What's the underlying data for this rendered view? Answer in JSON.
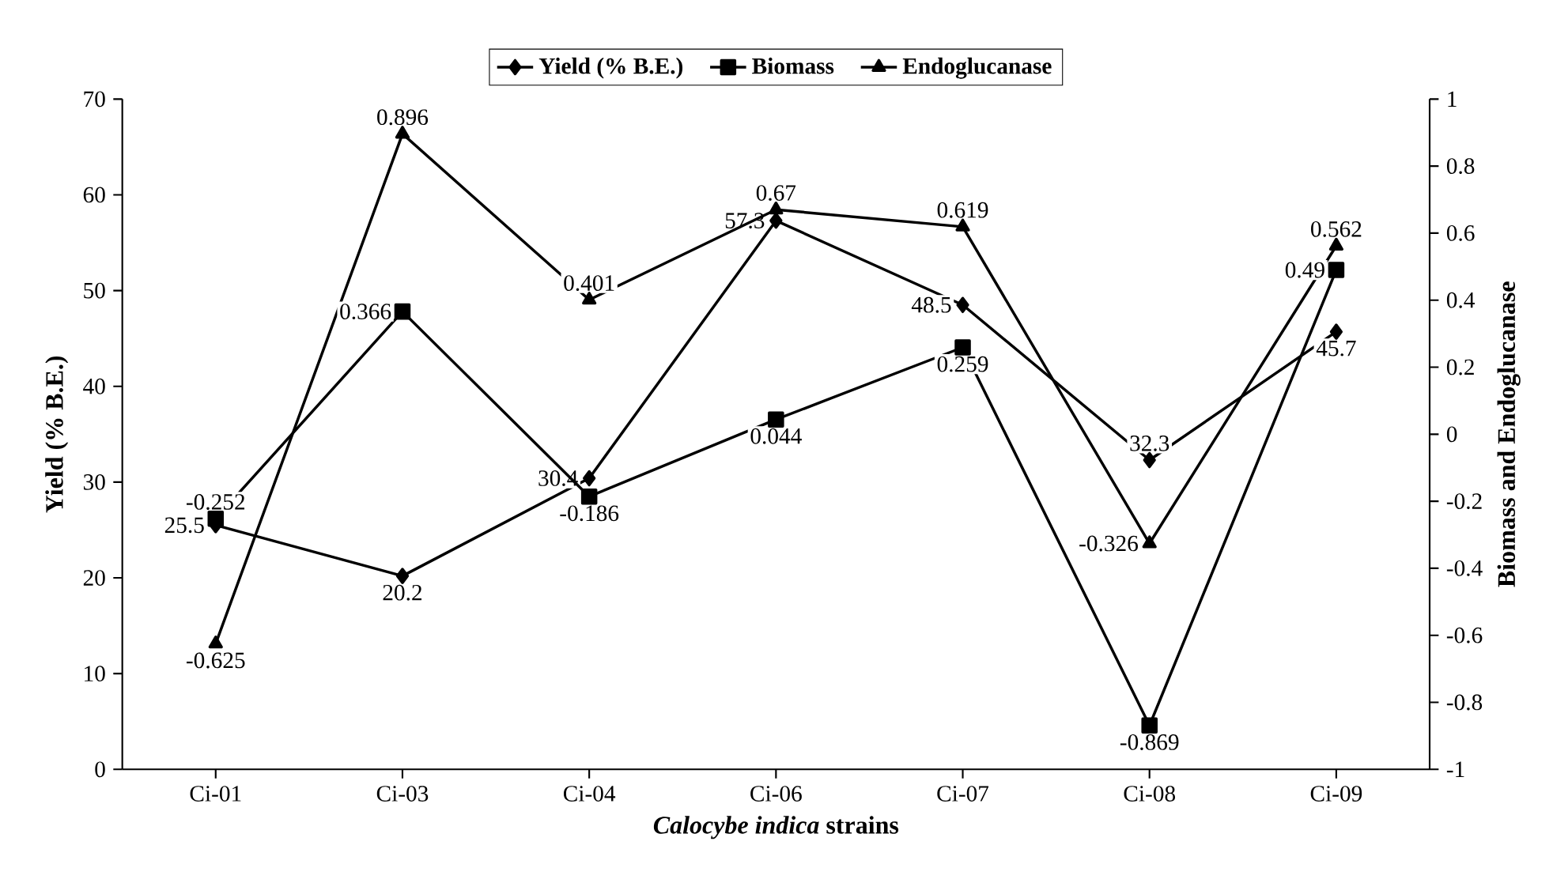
{
  "chart_data": {
    "type": "line",
    "categories": [
      "Ci-01",
      "Ci-03",
      "Ci-04",
      "Ci-06",
      "Ci-07",
      "Ci-08",
      "Ci-09"
    ],
    "series": [
      {
        "name": "Yield (% B.E.)",
        "color": "#000000",
        "marker": "diamond",
        "values": [
          25.5,
          20.2,
          30.4,
          57.3,
          48.5,
          32.3,
          45.7
        ]
      },
      {
        "name": "Biomass",
        "color": "#000000",
        "marker": "square",
        "axis": "y2",
        "values": [
          -0.252,
          0.366,
          -0.186,
          0.044,
          0.259,
          -0.869,
          0.49
        ]
      },
      {
        "name": "Endoglucanase",
        "color": "#000000",
        "marker": "triangle",
        "axis": "y2",
        "values": [
          -0.625,
          0.896,
          0.401,
          0.67,
          0.619,
          -0.326,
          0.562
        ]
      }
    ],
    "xlabel": "*Calocybe indica* strains",
    "ylabel": "Yield (% B.E.)",
    "y2label": "Biomass and Endoglucanase",
    "ylim": [
      0,
      70
    ],
    "yticks": [
      0,
      10,
      20,
      30,
      40,
      50,
      60,
      70
    ],
    "y2lim": [
      -1,
      1
    ],
    "y2ticks": [
      -1,
      -0.8,
      -0.6,
      -0.4,
      -0.2,
      0,
      0.2,
      0.4,
      0.6,
      0.8,
      1
    ],
    "data_labels": true,
    "legend": "top",
    "line_style": "solid",
    "grid": false
  }
}
